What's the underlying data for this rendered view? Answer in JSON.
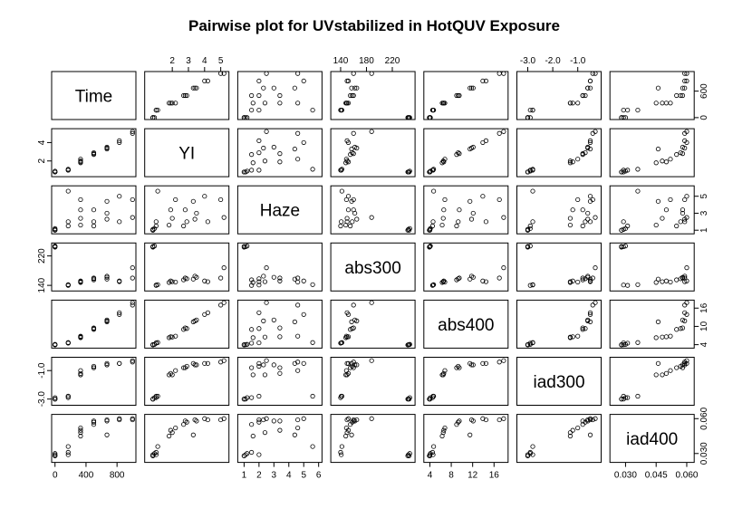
{
  "chart_data": {
    "type": "scatter",
    "title": "Pairwise plot for UVstabilized in HotQUV Exposure",
    "variables": [
      "Time",
      "YI",
      "Haze",
      "abs300",
      "abs400",
      "iad300",
      "iad400"
    ],
    "ranges": [
      [
        0,
        1000
      ],
      [
        0.5,
        5.3
      ],
      [
        0.8,
        6.0
      ],
      [
        130,
        250
      ],
      [
        3.5,
        18.0
      ],
      [
        -3.3,
        -0.2
      ],
      [
        0.024,
        0.062
      ]
    ],
    "ticks": [
      [
        0,
        400,
        800
      ],
      [
        2,
        3,
        4,
        5
      ],
      [
        1,
        2,
        3,
        4,
        5,
        6
      ],
      [
        140,
        180,
        220
      ],
      [
        4,
        8,
        12,
        16
      ],
      [
        -3.0,
        -2.0,
        -1.0
      ],
      [
        0.03,
        0.045,
        0.06
      ]
    ],
    "tick_labels": [
      [
        "0",
        "400",
        "800"
      ],
      [
        "2",
        "3",
        "4",
        "5"
      ],
      [
        "1",
        "2",
        "3",
        "4",
        "5",
        "6"
      ],
      [
        "140",
        "180",
        "220"
      ],
      [
        "4",
        "8",
        "12",
        "16"
      ],
      [
        "-3.0",
        "-2.0",
        "-1.0"
      ],
      [
        "0.030",
        "0.045",
        "0.060"
      ]
    ],
    "right_axis_ticks": [
      [
        0,
        600
      ],
      [],
      [
        1,
        3,
        5
      ],
      [],
      [
        4,
        10,
        16
      ],
      [],
      [
        0.03,
        0.06
      ]
    ],
    "right_axis_labels": [
      [
        "0",
        "600"
      ],
      [],
      [
        "1",
        "3",
        "5"
      ],
      [],
      [
        "4",
        "10",
        "16"
      ],
      [],
      [
        "0.030",
        "0.060"
      ]
    ],
    "left_axis_ticks": [
      [],
      [
        2,
        4
      ],
      [],
      [
        140,
        220
      ],
      [],
      [
        -3.0,
        -1.0
      ],
      []
    ],
    "left_axis_labels": [
      [],
      [
        "2",
        "4"
      ],
      [],
      [
        "140",
        "220"
      ],
      [],
      [
        "-3.0",
        "-1.0"
      ],
      []
    ],
    "observations": [
      {
        "Time": 0,
        "YI": 0.8,
        "Haze": 1.0,
        "abs300": 244,
        "abs400": 3.9,
        "iad300": -3.0,
        "iad400": 0.028
      },
      {
        "Time": 0,
        "YI": 0.8,
        "Haze": 1.1,
        "abs300": 245,
        "abs400": 4.0,
        "iad300": -3.0,
        "iad400": 0.029
      },
      {
        "Time": 0,
        "YI": 0.9,
        "Haze": 1.2,
        "abs300": 247,
        "abs400": 4.1,
        "iad300": -2.9,
        "iad400": 0.03
      },
      {
        "Time": 0,
        "YI": 0.8,
        "Haze": 1.0,
        "abs300": 246,
        "abs400": 4.0,
        "iad300": -3.0,
        "iad400": 0.028
      },
      {
        "Time": 170,
        "YI": 1.0,
        "Haze": 1.5,
        "abs300": 140,
        "abs400": 4.5,
        "iad300": -2.9,
        "iad400": 0.031
      },
      {
        "Time": 170,
        "YI": 1.0,
        "Haze": 2.0,
        "abs300": 141,
        "abs400": 4.6,
        "iad300": -2.8,
        "iad400": 0.029
      },
      {
        "Time": 170,
        "YI": 1.1,
        "Haze": 5.6,
        "abs300": 142,
        "abs400": 4.7,
        "iad300": -2.8,
        "iad400": 0.036
      },
      {
        "Time": 330,
        "YI": 1.8,
        "Haze": 1.6,
        "abs300": 148,
        "abs400": 6.3,
        "iad300": -1.3,
        "iad400": 0.045
      },
      {
        "Time": 330,
        "YI": 2.0,
        "Haze": 2.4,
        "abs300": 150,
        "abs400": 6.5,
        "iad300": -1.3,
        "iad400": 0.048
      },
      {
        "Time": 330,
        "YI": 1.9,
        "Haze": 3.4,
        "abs300": 152,
        "abs400": 6.6,
        "iad300": -1.2,
        "iad400": 0.05
      },
      {
        "Time": 330,
        "YI": 2.2,
        "Haze": 4.6,
        "abs300": 149,
        "abs400": 6.8,
        "iad300": -1.0,
        "iad400": 0.052
      },
      {
        "Time": 500,
        "YI": 2.7,
        "Haze": 1.5,
        "abs300": 155,
        "abs400": 9.0,
        "iad300": -0.8,
        "iad400": 0.055
      },
      {
        "Time": 500,
        "YI": 2.9,
        "Haze": 2.0,
        "abs300": 158,
        "abs400": 9.3,
        "iad300": -0.7,
        "iad400": 0.057
      },
      {
        "Time": 500,
        "YI": 2.8,
        "Haze": 3.4,
        "abs300": 160,
        "abs400": 9.5,
        "iad300": -0.8,
        "iad400": 0.058
      },
      {
        "Time": 670,
        "YI": 3.4,
        "Haze": 2.3,
        "abs300": 165,
        "abs400": 11.8,
        "iad300": -0.6,
        "iad400": 0.059
      },
      {
        "Time": 670,
        "YI": 3.5,
        "Haze": 3.0,
        "abs300": 162,
        "abs400": 12.1,
        "iad300": -0.6,
        "iad400": 0.058
      },
      {
        "Time": 670,
        "YI": 3.3,
        "Haze": 4.4,
        "abs300": 157,
        "abs400": 11.5,
        "iad300": -0.5,
        "iad400": 0.046
      },
      {
        "Time": 830,
        "YI": 4.2,
        "Haze": 2.0,
        "abs300": 150,
        "abs400": 14.5,
        "iad300": -0.5,
        "iad400": 0.059
      },
      {
        "Time": 830,
        "YI": 4.0,
        "Haze": 5.0,
        "abs300": 152,
        "abs400": 13.9,
        "iad300": -0.5,
        "iad400": 0.06
      },
      {
        "Time": 1000,
        "YI": 5.2,
        "Haze": 2.5,
        "abs300": 188,
        "abs400": 17.8,
        "iad300": -0.3,
        "iad400": 0.06
      },
      {
        "Time": 1000,
        "YI": 5.0,
        "Haze": 4.6,
        "abs300": 160,
        "abs400": 17.0,
        "iad300": -0.4,
        "iad400": 0.059
      }
    ]
  }
}
